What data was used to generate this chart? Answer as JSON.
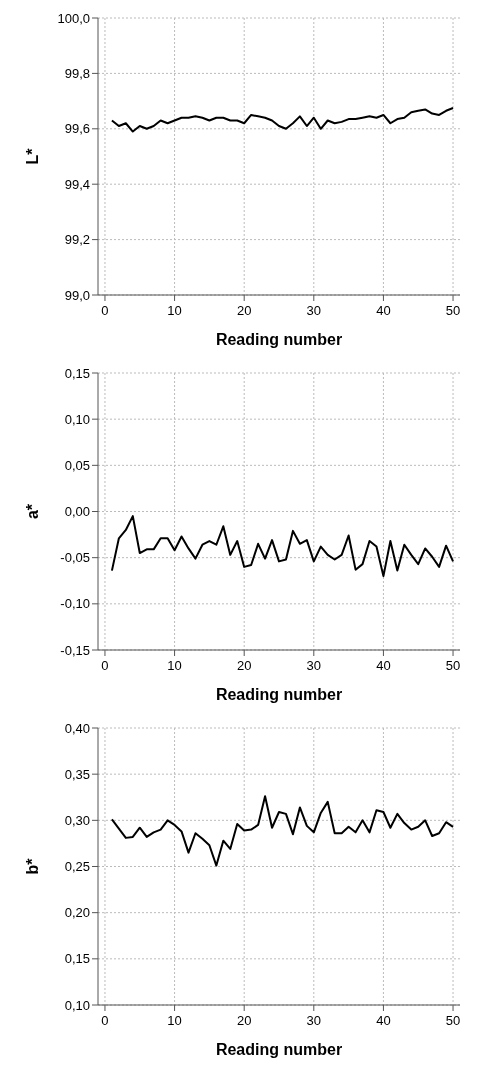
{
  "chart_data": [
    {
      "type": "line",
      "ylabel": "L*",
      "xlabel": "Reading number",
      "x": [
        1,
        2,
        3,
        4,
        5,
        6,
        7,
        8,
        9,
        10,
        11,
        12,
        13,
        14,
        15,
        16,
        17,
        18,
        19,
        20,
        21,
        22,
        23,
        24,
        25,
        26,
        27,
        28,
        29,
        30,
        31,
        32,
        33,
        34,
        35,
        36,
        37,
        38,
        39,
        40,
        41,
        42,
        43,
        44,
        45,
        46,
        47,
        48,
        49,
        50
      ],
      "series": [
        {
          "color": "#000000",
          "values": [
            99.63,
            99.61,
            99.62,
            99.59,
            99.61,
            99.6,
            99.61,
            99.63,
            99.62,
            99.63,
            99.64,
            99.64,
            99.645,
            99.64,
            99.63,
            99.64,
            99.64,
            99.63,
            99.63,
            99.62,
            99.65,
            99.645,
            99.64,
            99.63,
            99.61,
            99.6,
            99.62,
            99.645,
            99.61,
            99.64,
            99.6,
            99.63,
            99.62,
            99.625,
            99.635,
            99.635,
            99.64,
            99.645,
            99.64,
            99.65,
            99.62,
            99.635,
            99.64,
            99.66,
            99.665,
            99.67,
            99.655,
            99.65,
            99.665,
            99.675
          ]
        }
      ],
      "xlim": [
        -1,
        51
      ],
      "xticks": [
        0,
        10,
        20,
        30,
        40,
        50
      ],
      "ylim": [
        99.0,
        100.0
      ],
      "yticks": [
        {
          "value": 99.0,
          "label": "99,0"
        },
        {
          "value": 99.2,
          "label": "99,2"
        },
        {
          "value": 99.4,
          "label": "99,4"
        },
        {
          "value": 99.6,
          "label": "99,6"
        },
        {
          "value": 99.8,
          "label": "99,8"
        },
        {
          "value": 100.0,
          "label": "100,0"
        }
      ],
      "grid": true,
      "marker": "none",
      "line_style": "solid"
    },
    {
      "type": "line",
      "ylabel": "a*",
      "xlabel": "Reading number",
      "x": [
        1,
        2,
        3,
        4,
        5,
        6,
        7,
        8,
        9,
        10,
        11,
        12,
        13,
        14,
        15,
        16,
        17,
        18,
        19,
        20,
        21,
        22,
        23,
        24,
        25,
        26,
        27,
        28,
        29,
        30,
        31,
        32,
        33,
        34,
        35,
        36,
        37,
        38,
        39,
        40,
        41,
        42,
        43,
        44,
        45,
        46,
        47,
        48,
        49,
        50
      ],
      "series": [
        {
          "color": "#000000",
          "values": [
            -0.064,
            -0.029,
            -0.02,
            -0.005,
            -0.045,
            -0.041,
            -0.041,
            -0.029,
            -0.029,
            -0.042,
            -0.027,
            -0.04,
            -0.051,
            -0.036,
            -0.032,
            -0.036,
            -0.016,
            -0.047,
            -0.032,
            -0.06,
            -0.058,
            -0.035,
            -0.051,
            -0.031,
            -0.054,
            -0.052,
            -0.021,
            -0.035,
            -0.031,
            -0.054,
            -0.038,
            -0.047,
            -0.052,
            -0.047,
            -0.026,
            -0.063,
            -0.057,
            -0.032,
            -0.038,
            -0.07,
            -0.032,
            -0.064,
            -0.036,
            -0.047,
            -0.057,
            -0.04,
            -0.049,
            -0.06,
            -0.037,
            -0.054
          ]
        }
      ],
      "xlim": [
        -1,
        51
      ],
      "xticks": [
        0,
        10,
        20,
        30,
        40,
        50
      ],
      "ylim": [
        -0.15,
        0.15
      ],
      "yticks": [
        {
          "value": -0.15,
          "label": "-0,15"
        },
        {
          "value": -0.1,
          "label": "-0,10"
        },
        {
          "value": -0.05,
          "label": "-0,05"
        },
        {
          "value": 0,
          "label": "0,00"
        },
        {
          "value": 0.05,
          "label": "0,05"
        },
        {
          "value": 0.1,
          "label": "0,10"
        },
        {
          "value": 0.15,
          "label": "0,15"
        }
      ],
      "grid": true,
      "marker": "none",
      "line_style": "solid"
    },
    {
      "type": "line",
      "ylabel": "b*",
      "xlabel": "Reading number",
      "x": [
        1,
        2,
        3,
        4,
        5,
        6,
        7,
        8,
        9,
        10,
        11,
        12,
        13,
        14,
        15,
        16,
        17,
        18,
        19,
        20,
        21,
        22,
        23,
        24,
        25,
        26,
        27,
        28,
        29,
        30,
        31,
        32,
        33,
        34,
        35,
        36,
        37,
        38,
        39,
        40,
        41,
        42,
        43,
        44,
        45,
        46,
        47,
        48,
        49,
        50
      ],
      "series": [
        {
          "color": "#000000",
          "values": [
            0.301,
            0.291,
            0.281,
            0.282,
            0.292,
            0.282,
            0.287,
            0.29,
            0.3,
            0.295,
            0.288,
            0.265,
            0.286,
            0.28,
            0.273,
            0.251,
            0.278,
            0.269,
            0.296,
            0.289,
            0.29,
            0.295,
            0.326,
            0.292,
            0.309,
            0.307,
            0.285,
            0.314,
            0.294,
            0.287,
            0.308,
            0.32,
            0.286,
            0.286,
            0.293,
            0.287,
            0.3,
            0.287,
            0.311,
            0.309,
            0.292,
            0.307,
            0.297,
            0.29,
            0.293,
            0.3,
            0.283,
            0.286,
            0.298,
            0.293
          ]
        }
      ],
      "xlim": [
        -1,
        51
      ],
      "xticks": [
        0,
        10,
        20,
        30,
        40,
        50
      ],
      "ylim": [
        0.1,
        0.4
      ],
      "yticks": [
        {
          "value": 0.1,
          "label": "0,10"
        },
        {
          "value": 0.15,
          "label": "0,15"
        },
        {
          "value": 0.2,
          "label": "0,20"
        },
        {
          "value": 0.25,
          "label": "0,25"
        },
        {
          "value": 0.3,
          "label": "0,30"
        },
        {
          "value": 0.35,
          "label": "0,35"
        },
        {
          "value": 0.4,
          "label": "0,40"
        }
      ],
      "grid": true,
      "marker": "none",
      "line_style": "solid"
    }
  ]
}
